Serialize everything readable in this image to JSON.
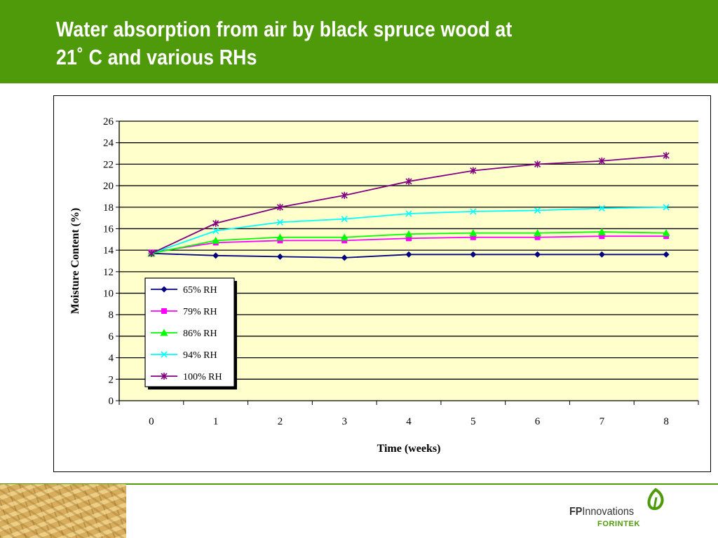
{
  "slide": {
    "title_line1": "Water absorption from air by black spruce wood at",
    "title_line2": "21˚ C and various RHs",
    "header_color": "#4f9a0a"
  },
  "logo": {
    "brand_bold": "FP",
    "brand_rest": "Innovations",
    "sub": "FORINTEK",
    "icon": "leaf-icon"
  },
  "chart_data": {
    "type": "line",
    "title": "",
    "xlabel": "Time (weeks)",
    "ylabel": "Moisture Content (%)",
    "x": [
      0,
      1,
      2,
      3,
      4,
      5,
      6,
      7,
      8
    ],
    "xlim": [
      0,
      8
    ],
    "ylim": [
      0,
      26
    ],
    "yticks": [
      0,
      2,
      4,
      6,
      8,
      10,
      12,
      14,
      16,
      18,
      20,
      22,
      24,
      26
    ],
    "grid": true,
    "plot_background": "#ffffcc",
    "legend_position": "lower-left",
    "series": [
      {
        "name": "65% RH",
        "marker": "diamond",
        "color": "#000080",
        "values": [
          13.7,
          13.5,
          13.4,
          13.3,
          13.6,
          13.6,
          13.6,
          13.6,
          13.6
        ]
      },
      {
        "name": "79% RH",
        "marker": "square",
        "color": "#ff00ff",
        "values": [
          13.8,
          14.7,
          14.9,
          14.9,
          15.1,
          15.2,
          15.2,
          15.3,
          15.3
        ]
      },
      {
        "name": "86% RH",
        "marker": "triangle",
        "color": "#00ff00",
        "values": [
          13.7,
          14.9,
          15.2,
          15.2,
          15.5,
          15.6,
          15.6,
          15.7,
          15.6
        ]
      },
      {
        "name": "94% RH",
        "marker": "x",
        "color": "#00ffff",
        "values": [
          13.7,
          15.8,
          16.6,
          16.9,
          17.4,
          17.6,
          17.7,
          17.9,
          18.0
        ]
      },
      {
        "name": "100% RH",
        "marker": "star",
        "color": "#800080",
        "values": [
          13.7,
          16.5,
          18.0,
          19.1,
          20.4,
          21.4,
          22.0,
          22.3,
          22.8
        ]
      }
    ]
  }
}
